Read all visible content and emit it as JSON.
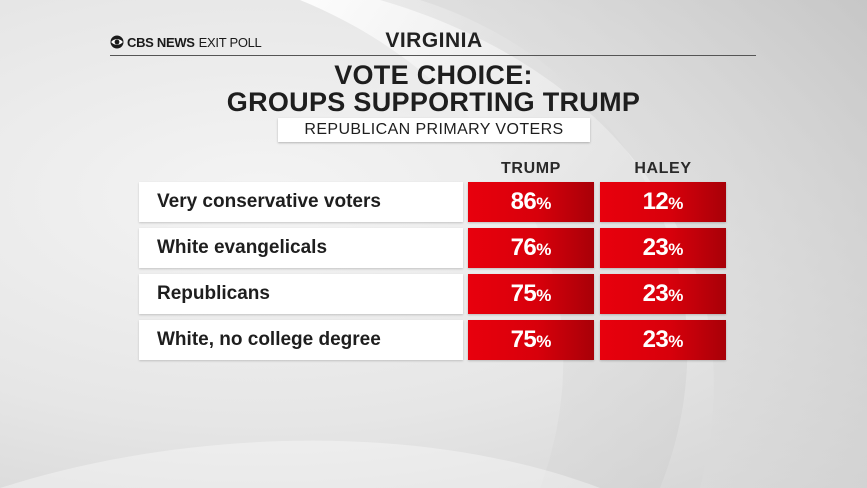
{
  "brand": {
    "name": "CBS NEWS",
    "sub": "EXIT POLL",
    "logo_icon": "cbs-eye-icon"
  },
  "state": "VIRGINIA",
  "title_line1": "VOTE CHOICE:",
  "title_line2": "GROUPS SUPPORTING TRUMP",
  "subtitle": "REPUBLICAN PRIMARY VOTERS",
  "colors": {
    "accent_red": "#e8000d",
    "text": "#1e1e1e"
  },
  "chart_data": {
    "type": "table",
    "title": "VOTE CHOICE: GROUPS SUPPORTING TRUMP",
    "subtitle": "REPUBLICAN PRIMARY VOTERS",
    "columns": [
      "TRUMP",
      "HALEY"
    ],
    "unit": "%",
    "rows": [
      {
        "group": "Very conservative voters",
        "values": [
          86,
          12
        ]
      },
      {
        "group": "White evangelicals",
        "values": [
          76,
          23
        ]
      },
      {
        "group": "Republicans",
        "values": [
          75,
          23
        ]
      },
      {
        "group": "White, no college degree",
        "values": [
          75,
          23
        ]
      }
    ]
  }
}
